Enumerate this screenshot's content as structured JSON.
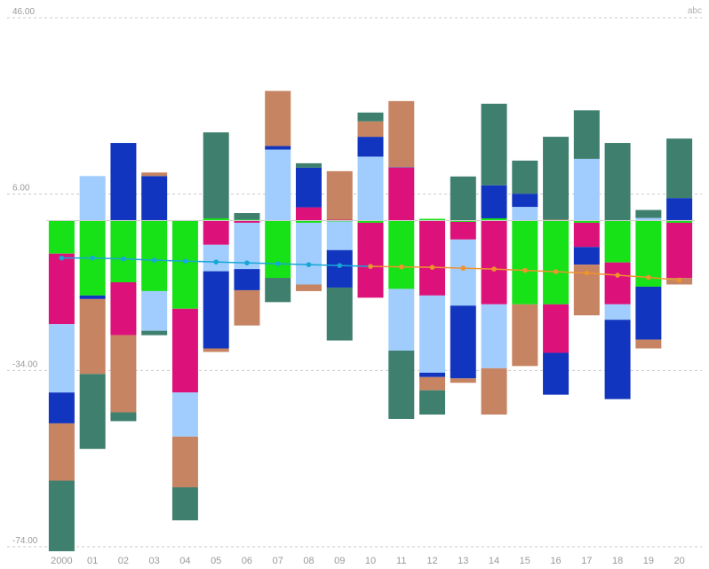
{
  "chart_data": {
    "type": "bar",
    "stacked": true,
    "corner_label": "abc",
    "categories": [
      "2000",
      "01",
      "02",
      "03",
      "04",
      "05",
      "06",
      "07",
      "08",
      "09",
      "10",
      "11",
      "12",
      "13",
      "14",
      "15",
      "16",
      "17",
      "18",
      "19",
      "20"
    ],
    "y_ticks": [
      46,
      6,
      -34,
      -74
    ],
    "y_tick_labels": [
      "46.00",
      "6.00",
      "-34.00",
      "-74.00"
    ],
    "ylim": [
      -74,
      46
    ],
    "grid": true,
    "series": [
      {
        "color": "#17e117",
        "values": [
          -7.5,
          -17,
          -14,
          -16,
          -20,
          0.5,
          0.2,
          -13,
          -0.5,
          -0.2,
          -0.5,
          -15.5,
          0.4,
          -0.3,
          0.5,
          -19,
          -19,
          -0.5,
          -9.5,
          -15,
          -0.5
        ]
      },
      {
        "color": "#dc127a",
        "values": [
          -16,
          0.1,
          -12,
          0.1,
          -19,
          -5.5,
          -0.5,
          0.1,
          3.0,
          0.2,
          -17,
          12.0,
          -17,
          -4.0,
          -19,
          0.1,
          -11,
          -5.5,
          -9.5,
          0.1,
          -12.5
        ]
      },
      {
        "color": "#a0cdfd",
        "values": [
          -15.5,
          10.0,
          0.1,
          -9.0,
          -10.0,
          -6.0,
          -10.5,
          16.0,
          -14.0,
          -6.5,
          14.5,
          -14.0,
          -17.5,
          -15,
          -14.5,
          3.0,
          0.1,
          14.0,
          -3.5,
          0.5,
          0.1
        ]
      },
      {
        "color": "#1235bf",
        "values": [
          -7,
          -0.8,
          17.5,
          10.0,
          0.1,
          -17.5,
          -4.8,
          0.8,
          9.0,
          -8.5,
          4.5,
          0.1,
          -1,
          -16.5,
          7.5,
          3.0,
          -9.5,
          -4.0,
          -18,
          -12,
          5.0
        ]
      },
      {
        "color": "#c68462",
        "values": [
          -13,
          -17,
          -17.5,
          0.8,
          -11.5,
          -0.8,
          -8.0,
          12.5,
          -1.5,
          11.0,
          3.5,
          15.0,
          -3.0,
          -1.0,
          -10.5,
          -14,
          0.1,
          -11.5,
          0.1,
          -2.0,
          -1.5
        ]
      },
      {
        "color": "#3e7f6e",
        "values": [
          -16,
          -17,
          -2.0,
          -1.0,
          -7.5,
          19.5,
          1.5,
          -5.5,
          1.0,
          -12.0,
          2.0,
          -15.5,
          -5.5,
          10.0,
          18.5,
          7.5,
          18.8,
          11.0,
          17.5,
          1.8,
          13.5
        ]
      }
    ],
    "line_series": [
      {
        "color": "#16a7d6",
        "x_range": [
          "2000",
          "10"
        ],
        "values": [
          -8.5,
          -8.5,
          -8.7,
          -9.0,
          -9.2,
          -9.4,
          -9.6,
          -9.8,
          -10.0,
          -10.2,
          -10.4
        ]
      },
      {
        "color": "#f0922e",
        "x_range": [
          "10",
          "20"
        ],
        "values": [
          -10.4,
          -10.5,
          -10.6,
          -10.8,
          -11.0,
          -11.3,
          -11.6,
          -11.9,
          -12.4,
          -12.9,
          -13.5
        ]
      }
    ]
  }
}
